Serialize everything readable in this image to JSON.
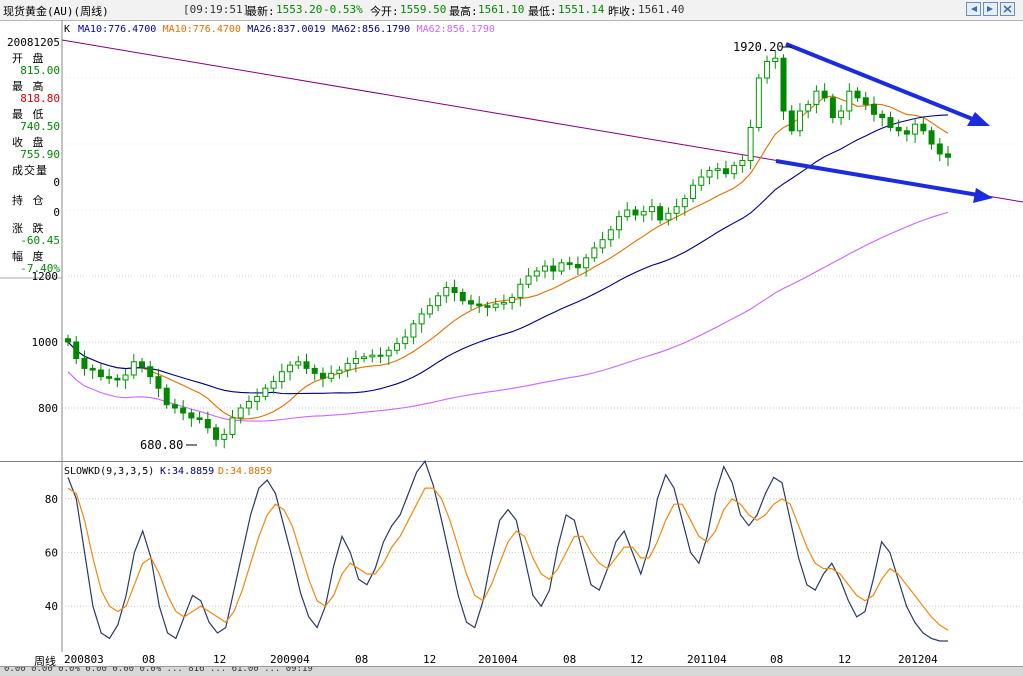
{
  "titlebar": {
    "instrument": "现货黄金(AU)(周线)",
    "clock": "[09:19:51]",
    "latest_label": "最新:",
    "latest_value": "1553.20",
    "change_pct": "-0.53%",
    "open_label": "今开:",
    "open_value": "1559.50",
    "high_label": "最高:",
    "high_value": "1561.10",
    "low_label": "最低:",
    "low_value": "1551.14",
    "prev_label": "昨收:",
    "prev_value": "1561.40"
  },
  "ma_legend": {
    "prefix": "K",
    "items": [
      {
        "text": "MA10:776.4700",
        "color": "#0000aa"
      },
      {
        "text": "MA10:776.4700",
        "color": "#e07000"
      },
      {
        "text": "MA26:837.0019",
        "color": "#000080"
      },
      {
        "text": "MA62:856.1790",
        "color": "#000080"
      },
      {
        "text": "MA62:856.1790",
        "color": "#cc66ff"
      }
    ]
  },
  "info_panel": {
    "date": "20081205",
    "open_label": "开 盘",
    "open_value": "815.00",
    "high_label": "最 高",
    "high_value": "818.80",
    "low_label": "最 低",
    "low_value": "740.50",
    "close_label": "收 盘",
    "close_value": "755.90",
    "volume_label": "成交量",
    "volume_value": "0",
    "position_label": "持 仓",
    "position_value": "0",
    "change_label": "涨 跌",
    "change_value": "-60.45",
    "range_label": "幅 度",
    "range_value": "-7.40%"
  },
  "oscillator_legend": {
    "name": "SLOWKD(9,3,3,5)",
    "k_text": "K:34.8859",
    "d_text": "D:34.8859"
  },
  "x_axis": {
    "period_label": "周线",
    "ticks": [
      "200803",
      "08",
      "12",
      "200904",
      "08",
      "12",
      "201004",
      "08",
      "12",
      "201104",
      "08",
      "12",
      "201204"
    ]
  },
  "statusbar": {
    "text": "0.00  0.00  0.0%  0.00  0.00  0.0%  ...  816 ... 61.00 ... 09:19"
  },
  "colors": {
    "up": "#009900",
    "down": "#008800",
    "ma_orange": "#e07000",
    "ma_navy": "#000080",
    "ma_violet": "#cc66ff",
    "trendline": "#800080",
    "arrow": "#1a2be0",
    "k_line": "#2a3a66",
    "d_line": "#f08a10",
    "grid": "#c0c0c0",
    "red_value": "#dd0000",
    "green_value": "#008800"
  },
  "chart_data": [
    {
      "type": "candlestick",
      "title": "现货黄金(AU)(周线)",
      "xlabel": "",
      "ylabel": "",
      "ylim": [
        650,
        2050
      ],
      "y_ticks": [
        800,
        1000,
        1200
      ],
      "grid": true,
      "annotations": [
        {
          "text": "1920.20",
          "x": "2011-09",
          "y": 1920.2
        },
        {
          "text": "680.80",
          "x": "2008-10",
          "y": 680.8
        }
      ],
      "trendlines": [
        {
          "name": "long-term resistance",
          "from": [
            "2008-03",
            1780
          ],
          "to": [
            "2012-05",
            1080
          ]
        },
        {
          "name": "upper arrow",
          "from": [
            "2011-09",
            1920
          ],
          "to": [
            "2012-05",
            1690
          ]
        },
        {
          "name": "lower arrow",
          "from": [
            "2011-08",
            1590
          ],
          "to": [
            "2012-05",
            1430
          ]
        }
      ],
      "closes": [
        1000,
        950,
        920,
        915,
        895,
        890,
        885,
        900,
        940,
        925,
        895,
        860,
        810,
        800,
        785,
        770,
        765,
        740,
        705,
        720,
        770,
        800,
        820,
        835,
        860,
        880,
        910,
        930,
        940,
        920,
        905,
        890,
        905,
        915,
        935,
        950,
        955,
        960,
        958,
        975,
        995,
        1015,
        1055,
        1085,
        1110,
        1140,
        1165,
        1150,
        1125,
        1115,
        1110,
        1105,
        1115,
        1120,
        1135,
        1175,
        1200,
        1215,
        1230,
        1215,
        1240,
        1235,
        1225,
        1255,
        1285,
        1310,
        1340,
        1380,
        1400,
        1385,
        1395,
        1410,
        1370,
        1390,
        1410,
        1435,
        1475,
        1500,
        1520,
        1525,
        1510,
        1535,
        1550,
        1650,
        1800,
        1850,
        1860,
        1700,
        1640,
        1700,
        1720,
        1760,
        1740,
        1680,
        1700,
        1760,
        1740,
        1720,
        1690,
        1680,
        1650,
        1640,
        1630,
        1660,
        1640,
        1600,
        1570,
        1560
      ],
      "moving_averages": [
        {
          "name": "MA10",
          "color": "#e07000"
        },
        {
          "name": "MA26",
          "color": "#000080"
        },
        {
          "name": "MA62",
          "color": "#cc66ff"
        }
      ]
    },
    {
      "type": "line",
      "title": "SLOWKD(9,3,3,5)",
      "ylim": [
        20,
        95
      ],
      "y_ticks": [
        40,
        60,
        80
      ],
      "series": [
        {
          "name": "K",
          "color": "#2a3a66",
          "values": [
            88,
            80,
            60,
            40,
            30,
            28,
            33,
            44,
            60,
            68,
            58,
            40,
            30,
            28,
            36,
            44,
            42,
            34,
            30,
            32,
            46,
            60,
            74,
            84,
            87,
            82,
            70,
            58,
            45,
            36,
            32,
            40,
            55,
            66,
            60,
            50,
            48,
            54,
            64,
            70,
            74,
            82,
            90,
            94,
            85,
            72,
            58,
            44,
            34,
            32,
            42,
            58,
            72,
            76,
            72,
            58,
            44,
            40,
            46,
            62,
            74,
            72,
            60,
            48,
            46,
            54,
            64,
            68,
            60,
            52,
            62,
            80,
            89,
            84,
            72,
            60,
            56,
            66,
            82,
            92,
            86,
            74,
            70,
            74,
            82,
            88,
            86,
            72,
            58,
            48,
            46,
            52,
            56,
            50,
            42,
            36,
            38,
            50,
            64,
            60,
            50,
            40,
            34,
            30,
            28,
            27,
            27
          ]
        },
        {
          "name": "D",
          "color": "#f08a10",
          "values": [
            84,
            82,
            72,
            58,
            46,
            40,
            38,
            40,
            48,
            56,
            58,
            52,
            44,
            38,
            36,
            38,
            40,
            38,
            36,
            34,
            38,
            46,
            56,
            66,
            74,
            78,
            76,
            70,
            60,
            50,
            42,
            40,
            44,
            52,
            56,
            54,
            52,
            52,
            56,
            62,
            66,
            72,
            78,
            84,
            84,
            80,
            72,
            62,
            52,
            44,
            42,
            48,
            56,
            64,
            68,
            66,
            58,
            52,
            50,
            54,
            60,
            66,
            66,
            60,
            56,
            54,
            58,
            62,
            62,
            58,
            58,
            64,
            72,
            78,
            78,
            72,
            66,
            64,
            68,
            76,
            80,
            78,
            74,
            72,
            74,
            78,
            80,
            78,
            70,
            62,
            56,
            54,
            54,
            52,
            48,
            44,
            42,
            44,
            50,
            54,
            52,
            48,
            44,
            40,
            36,
            33,
            31
          ]
        }
      ]
    }
  ]
}
